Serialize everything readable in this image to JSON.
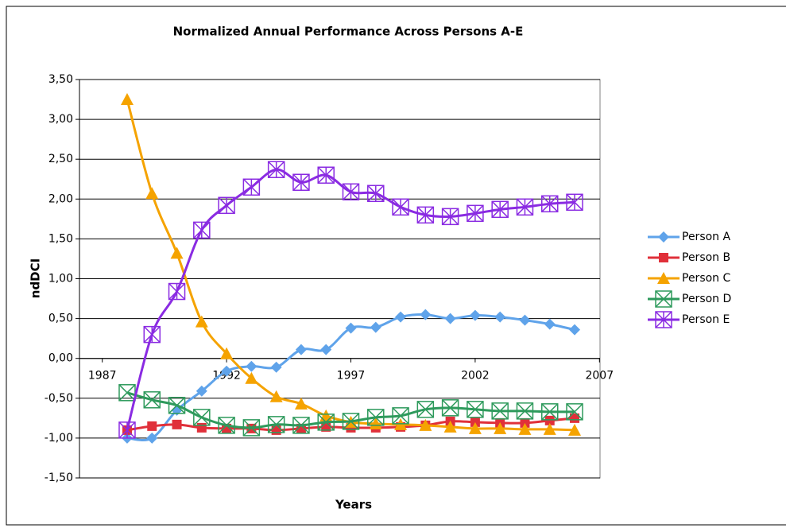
{
  "chart_data": {
    "type": "line",
    "title": "Normalized Annual Performance Across Persons A-E",
    "x_label": "Years",
    "y_label": "ndDCI",
    "x": [
      1988,
      1989,
      1990,
      1991,
      1992,
      1993,
      1994,
      1995,
      1996,
      1997,
      1998,
      1999,
      2000,
      2001,
      2002,
      2003,
      2004,
      2005,
      2006
    ],
    "series": [
      {
        "name": "Person A",
        "color": "#5fa3ea",
        "marker": "diamond",
        "values": [
          -1.0,
          -1.0,
          -0.65,
          -0.41,
          -0.16,
          -0.1,
          -0.11,
          0.11,
          0.11,
          0.38,
          0.39,
          0.52,
          0.55,
          0.5,
          0.54,
          0.52,
          0.48,
          0.43,
          0.36
        ]
      },
      {
        "name": "Person B",
        "color": "#e0303a",
        "marker": "square",
        "values": [
          -0.9,
          -0.85,
          -0.83,
          -0.87,
          -0.88,
          -0.88,
          -0.9,
          -0.88,
          -0.86,
          -0.87,
          -0.87,
          -0.86,
          -0.84,
          -0.79,
          -0.8,
          -0.81,
          -0.81,
          -0.78,
          -0.75
        ]
      },
      {
        "name": "Person C",
        "color": "#f5a300",
        "marker": "triangle",
        "values": [
          3.25,
          2.07,
          1.32,
          0.46,
          0.06,
          -0.25,
          -0.48,
          -0.57,
          -0.72,
          -0.8,
          -0.82,
          -0.83,
          -0.84,
          -0.86,
          -0.88,
          -0.88,
          -0.89,
          -0.89,
          -0.9
        ]
      },
      {
        "name": "Person D",
        "color": "#2e9a5c",
        "marker": "boxx",
        "values": [
          -0.43,
          -0.52,
          -0.59,
          -0.74,
          -0.84,
          -0.87,
          -0.83,
          -0.84,
          -0.8,
          -0.79,
          -0.74,
          -0.72,
          -0.64,
          -0.62,
          -0.64,
          -0.66,
          -0.66,
          -0.67,
          -0.67
        ]
      },
      {
        "name": "Person E",
        "color": "#8a2be2",
        "marker": "boxstar",
        "values": [
          -0.9,
          0.3,
          0.84,
          1.61,
          1.92,
          2.15,
          2.37,
          2.21,
          2.3,
          2.09,
          2.07,
          1.9,
          1.8,
          1.78,
          1.82,
          1.87,
          1.9,
          1.94,
          1.96
        ]
      }
    ],
    "xlim": [
      1987,
      2007
    ],
    "xticks": [
      1987,
      1992,
      1997,
      2002,
      2007
    ],
    "ylim": [
      -1.5,
      3.5
    ],
    "yticks": [
      {
        "value": -1.5,
        "label": "-1,50"
      },
      {
        "value": -1,
        "label": "-1,00"
      },
      {
        "value": -0.5,
        "label": "-0,50"
      },
      {
        "value": 0,
        "label": "0,00"
      },
      {
        "value": 0.5,
        "label": "0,50"
      },
      {
        "value": 1,
        "label": "1,00"
      },
      {
        "value": 1.5,
        "label": "1,50"
      },
      {
        "value": 2,
        "label": "2,00"
      },
      {
        "value": 2.5,
        "label": "2,50"
      },
      {
        "value": 3,
        "label": "3,00"
      },
      {
        "value": 3.5,
        "label": "3,50"
      }
    ],
    "grid": true,
    "legend": "right"
  }
}
